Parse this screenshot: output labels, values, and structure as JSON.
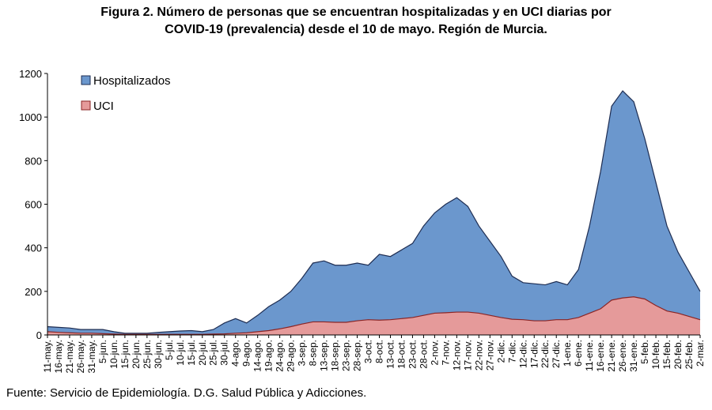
{
  "chart_data": {
    "type": "area",
    "title": [
      "Figura 2. Número de personas que se encuentran hospitalizadas y en UCI diarias por",
      "COVID-19 (prevalencia) desde el 10 de mayo. Región de Murcia."
    ],
    "source": "Fuente: Servicio de Epidemiología. D.G. Salud Pública y Adicciones.",
    "categories": [
      "11-may.",
      "16-may.",
      "21-may.",
      "26-may.",
      "31-may.",
      "5-jun.",
      "10-jun.",
      "15-jun.",
      "20-jun.",
      "25-jun.",
      "30-jun.",
      "5-jul.",
      "10-jul.",
      "15-jul.",
      "20-jul.",
      "25-jul.",
      "30-jul.",
      "4-ago.",
      "9-ago.",
      "14-ago.",
      "19-ago.",
      "24-ago.",
      "29-ago.",
      "3-sep.",
      "8-sep.",
      "13-sep.",
      "18-sep.",
      "23-sep.",
      "28-sep.",
      "3-oct.",
      "8-oct.",
      "13-oct.",
      "18-oct.",
      "23-oct.",
      "28-oct.",
      "2-nov.",
      "7-nov.",
      "12-nov.",
      "17-nov.",
      "22-nov.",
      "27-nov.",
      "2-dic.",
      "7-dic.",
      "12-dic.",
      "17-dic.",
      "22-dic.",
      "27-dic.",
      "1-ene.",
      "6-ene.",
      "11-ene.",
      "16-ene.",
      "21-ene.",
      "26-ene.",
      "31-ene.",
      "5-feb.",
      "10-feb.",
      "15-feb.",
      "20-feb.",
      "25-feb.",
      "2-mar."
    ],
    "series": [
      {
        "name": "Hospitalizados",
        "color": "#6b97cd",
        "values": [
          38,
          35,
          32,
          25,
          25,
          25,
          15,
          8,
          8,
          8,
          12,
          15,
          18,
          20,
          15,
          25,
          55,
          75,
          55,
          90,
          130,
          160,
          200,
          260,
          330,
          340,
          320,
          320,
          330,
          320,
          370,
          360,
          390,
          420,
          500,
          560,
          600,
          630,
          590,
          500,
          430,
          360,
          270,
          240,
          235,
          230,
          245,
          230,
          300,
          500,
          750,
          1050,
          1120,
          1070,
          900,
          700,
          500,
          380,
          290,
          200
        ]
      },
      {
        "name": "UCI",
        "color": "#e59a9a",
        "values": [
          15,
          12,
          10,
          8,
          8,
          6,
          4,
          3,
          3,
          3,
          3,
          3,
          3,
          3,
          3,
          4,
          5,
          8,
          10,
          15,
          20,
          28,
          38,
          50,
          60,
          60,
          58,
          58,
          65,
          70,
          68,
          70,
          75,
          80,
          90,
          100,
          102,
          105,
          105,
          100,
          90,
          80,
          72,
          70,
          65,
          65,
          70,
          70,
          80,
          100,
          120,
          160,
          170,
          175,
          165,
          135,
          110,
          100,
          85,
          70
        ]
      }
    ],
    "ylim": [
      0,
      1200
    ],
    "yticks": [
      0,
      200,
      400,
      600,
      800,
      1000,
      1200
    ]
  }
}
